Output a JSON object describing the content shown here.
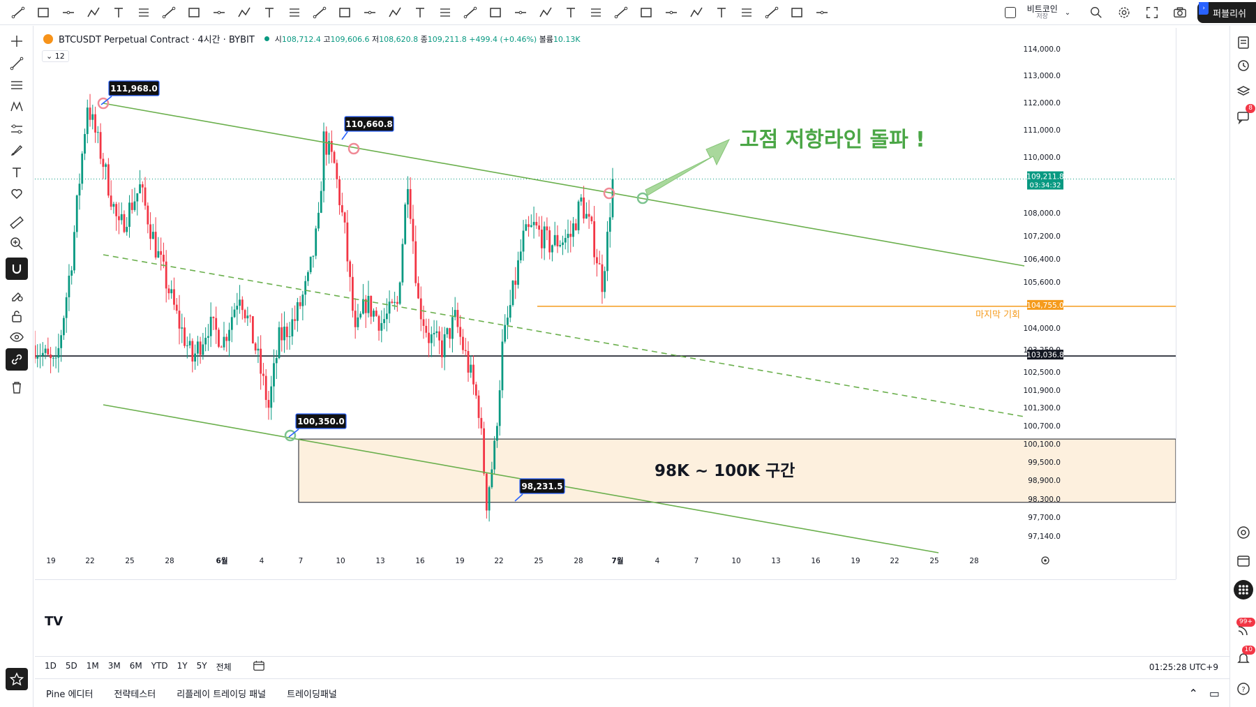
{
  "toolbar": {
    "tools": [
      "trend-line",
      "ray",
      "info-line",
      "vertical-line",
      "extended-line",
      "horizontal-line",
      "rectangle",
      "grid",
      "cross-line",
      "text-tool",
      "date-price-range",
      "regression",
      "pitchfork",
      "channel",
      "ellipse",
      "brush",
      "text",
      "fib",
      "fib-channel",
      "abcd",
      "abcde",
      "head-shoulders",
      "xabcd",
      "long-position",
      "short-position",
      "flag",
      "anchored",
      "callout",
      "price-note",
      "sign",
      "fib-fan",
      "fib-circle",
      "gann"
    ],
    "save_title": "비트코인",
    "save_sub": "저장",
    "publish": "퍼블리쉬"
  },
  "legend": {
    "symbol": "BTCUSDT Perpetual Contract · 4시간 · BYBIT",
    "o_label": "시",
    "o": "108,712.4",
    "h_label": "고",
    "h": "109,606.6",
    "l_label": "저",
    "l": "108,620.8",
    "c_label": "종",
    "c": "109,211.8",
    "change": "+499.4 (+0.46%)",
    "vol_label": "볼륨",
    "vol": "10.13K",
    "indicator_count": "12"
  },
  "range_bar": {
    "ranges": [
      "1D",
      "5D",
      "1M",
      "3M",
      "6M",
      "YTD",
      "1Y",
      "5Y",
      "전체"
    ],
    "time": "01:25:28 UTC+9"
  },
  "bottom_panel": {
    "tabs": [
      "Pine 에디터",
      "전략테스터",
      "리플레이 트레이딩 패널",
      "트레이딩패널"
    ]
  },
  "right_sidebar": {
    "badge_chat": "8",
    "badge_feed": "99+",
    "badge_alerts": "10"
  },
  "colors": {
    "up": "#089981",
    "down": "#f23645",
    "trend": "#6aaf4c",
    "orange": "#f59b1c",
    "zone": "#fdf0de",
    "annotation_green": "#4aa645"
  },
  "chart_data": {
    "type": "candlestick",
    "y_ticks": [
      "114,000.0",
      "113,000.0",
      "112,000.0",
      "111,000.0",
      "110,000.0",
      "108,000.0",
      "107,200.0",
      "106,400.0",
      "105,600.0",
      "104,000.0",
      "103,250.0",
      "102,500.0",
      "101,900.0",
      "101,300.0",
      "100,700.0",
      "100,100.0",
      "99,500.0",
      "98,900.0",
      "98,300.0",
      "97,700.0",
      "97,140.0"
    ],
    "x_ticks": [
      "19",
      "22",
      "25",
      "28",
      "6월",
      "4",
      "7",
      "10",
      "13",
      "16",
      "19",
      "22",
      "25",
      "28",
      "7월",
      "4",
      "7",
      "10",
      "13",
      "16",
      "19",
      "22",
      "25",
      "28"
    ],
    "price_labels": {
      "current": "109,211.8",
      "countdown": "03:34:32",
      "orange_level": "104,755.0",
      "black_level": "103,036.8"
    },
    "annotations": {
      "high1": "111,968.0",
      "high2": "110,660.8",
      "low1": "100,350.0",
      "low2": "98,231.5",
      "breakout_text": "고점 저항라인 돌파 !",
      "zone_text": "98K ~ 100K 구간",
      "last_chance": "마지막 기회"
    },
    "waypoints": [
      [
        0,
        103400
      ],
      [
        8,
        102600
      ],
      [
        14,
        106400
      ],
      [
        20,
        111968
      ],
      [
        26,
        109800
      ],
      [
        32,
        107400
      ],
      [
        40,
        108900
      ],
      [
        46,
        106800
      ],
      [
        54,
        104400
      ],
      [
        60,
        102900
      ],
      [
        66,
        104100
      ],
      [
        72,
        103600
      ],
      [
        78,
        105300
      ],
      [
        84,
        103300
      ],
      [
        89,
        101300
      ],
      [
        93,
        103600
      ],
      [
        99,
        104300
      ],
      [
        104,
        105600
      ],
      [
        108,
        107600
      ],
      [
        110,
        110660
      ],
      [
        114,
        109700
      ],
      [
        118,
        107300
      ],
      [
        122,
        103700
      ],
      [
        126,
        104900
      ],
      [
        132,
        104200
      ],
      [
        138,
        104800
      ],
      [
        142,
        109300
      ],
      [
        146,
        104900
      ],
      [
        150,
        103700
      ],
      [
        155,
        103300
      ],
      [
        160,
        104300
      ],
      [
        165,
        102700
      ],
      [
        169,
        101300
      ],
      [
        172,
        98231
      ],
      [
        175,
        99900
      ],
      [
        178,
        103300
      ],
      [
        182,
        105200
      ],
      [
        186,
        107100
      ],
      [
        190,
        107500
      ],
      [
        196,
        106900
      ],
      [
        204,
        107200
      ],
      [
        208,
        108400
      ],
      [
        212,
        107300
      ],
      [
        216,
        105600
      ],
      [
        218,
        107100
      ],
      [
        220,
        109211
      ]
    ]
  }
}
